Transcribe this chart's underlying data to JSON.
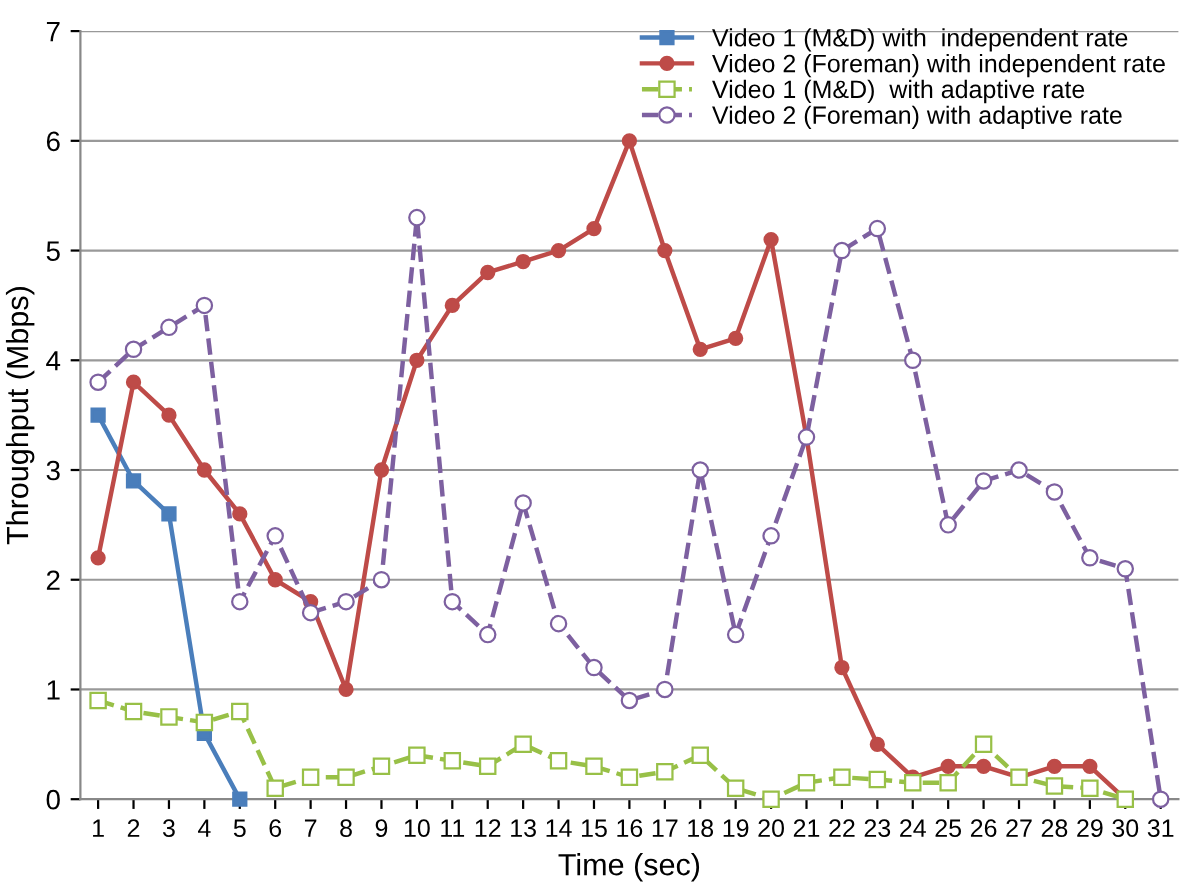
{
  "chart_data": {
    "type": "line",
    "xlabel": "Time (sec)",
    "ylabel": "Throughput (Mbps)",
    "categories": [
      "1",
      "2",
      "3",
      "4",
      "5",
      "6",
      "7",
      "8",
      "9",
      "10",
      "11",
      "12",
      "13",
      "14",
      "15",
      "16",
      "17",
      "18",
      "19",
      "20",
      "21",
      "22",
      "23",
      "24",
      "25",
      "26",
      "27",
      "28",
      "29",
      "30",
      "31"
    ],
    "ylim": [
      0,
      7
    ],
    "yticks": [
      0,
      1,
      2,
      3,
      4,
      5,
      6,
      7
    ],
    "grid": "y",
    "legend": "top right",
    "series": [
      {
        "name": "Video 1 (M&D) with  independent rate",
        "color": "#4a7ebb",
        "marker": "square",
        "line_style": "solid",
        "values": [
          3.5,
          2.9,
          2.6,
          0.6,
          0.0,
          null,
          null,
          null,
          null,
          null,
          null,
          null,
          null,
          null,
          null,
          null,
          null,
          null,
          null,
          null,
          null,
          null,
          null,
          null,
          null,
          null,
          null,
          null,
          null,
          null,
          null
        ]
      },
      {
        "name": "Video 2 (Foreman) with independent rate",
        "color": "#be4b48",
        "marker": "circle",
        "line_style": "solid",
        "values": [
          2.2,
          3.8,
          3.5,
          3.0,
          2.6,
          2.0,
          1.8,
          1.0,
          3.0,
          4.0,
          4.5,
          4.8,
          4.9,
          5.0,
          5.2,
          6.0,
          5.0,
          4.1,
          4.2,
          5.1,
          3.3,
          1.2,
          0.5,
          0.2,
          0.3,
          0.3,
          0.2,
          0.3,
          0.3,
          0.0,
          null
        ]
      },
      {
        "name": "Video 1 (M&D)  with adaptive rate",
        "color": "#98c047",
        "marker": "square",
        "line_style": "dashed",
        "values": [
          0.9,
          0.8,
          0.75,
          0.7,
          0.8,
          0.1,
          0.2,
          0.2,
          0.3,
          0.4,
          0.35,
          0.3,
          0.5,
          0.35,
          0.3,
          0.2,
          0.25,
          0.4,
          0.1,
          0.0,
          0.15,
          0.2,
          0.18,
          0.15,
          0.15,
          0.5,
          0.2,
          0.12,
          0.1,
          0.0,
          null
        ]
      },
      {
        "name": "Video 2 (Foreman) with adaptive rate",
        "color": "#7d60a0",
        "marker": "circle",
        "line_style": "dashed",
        "values": [
          3.8,
          4.1,
          4.3,
          4.5,
          1.8,
          2.4,
          1.7,
          1.8,
          2.0,
          5.3,
          1.8,
          1.5,
          2.7,
          1.6,
          1.2,
          0.9,
          1.0,
          3.0,
          1.5,
          2.4,
          3.3,
          5.0,
          5.2,
          4.0,
          2.5,
          2.9,
          3.0,
          2.8,
          2.2,
          2.1,
          0.0
        ]
      }
    ]
  }
}
